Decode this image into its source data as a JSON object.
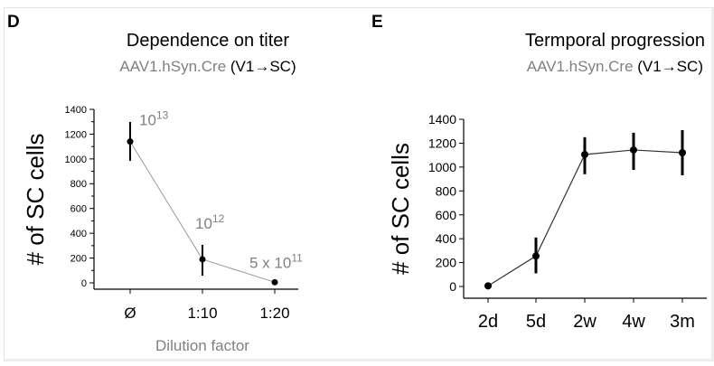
{
  "panels": [
    {
      "label": "D",
      "title": "Dependence on titer",
      "subtitle_gray": "AAV1.hSyn.Cre",
      "subtitle_black": "(V1→SC)"
    },
    {
      "label": "E",
      "title": "Termporal progression",
      "subtitle_gray": "AAV1.hSyn.Cre",
      "subtitle_black": "(V1→SC)"
    }
  ],
  "chart_data": [
    {
      "type": "line",
      "title": "Dependence on titer",
      "subtitle": "AAV1.hSyn.Cre (V1→SC)",
      "xlabel": "Dilution factor",
      "ylabel": "# of SC cells",
      "categories": [
        "Ø",
        "1:10",
        "1:20"
      ],
      "values": [
        1140,
        190,
        5
      ],
      "error_low": [
        985,
        58,
        5
      ],
      "error_high": [
        1298,
        306,
        5
      ],
      "point_labels": [
        {
          "base": "10",
          "exp": "13"
        },
        {
          "base": "10",
          "exp": "12"
        },
        {
          "base": "5 x 10",
          "exp": "11"
        }
      ],
      "yticks": [
        0,
        200,
        400,
        600,
        800,
        1000,
        1200,
        1400
      ],
      "ylim": [
        -50,
        1400
      ],
      "line_color": "#999999",
      "grid": false
    },
    {
      "type": "line",
      "title": "Termporal progression",
      "subtitle": "AAV1.hSyn.Cre (V1→SC)",
      "xlabel": "",
      "ylabel": "# of SC cells",
      "categories": [
        "2d",
        "5d",
        "2w",
        "4w",
        "3m"
      ],
      "values": [
        5,
        255,
        1105,
        1143,
        1120
      ],
      "error_low": [
        5,
        110,
        940,
        976,
        931
      ],
      "error_high": [
        5,
        410,
        1250,
        1287,
        1309
      ],
      "yticks": [
        0,
        200,
        400,
        600,
        800,
        1000,
        1200,
        1400
      ],
      "ylim": [
        -100,
        1400
      ],
      "line_color": "#333333",
      "grid": false
    }
  ]
}
